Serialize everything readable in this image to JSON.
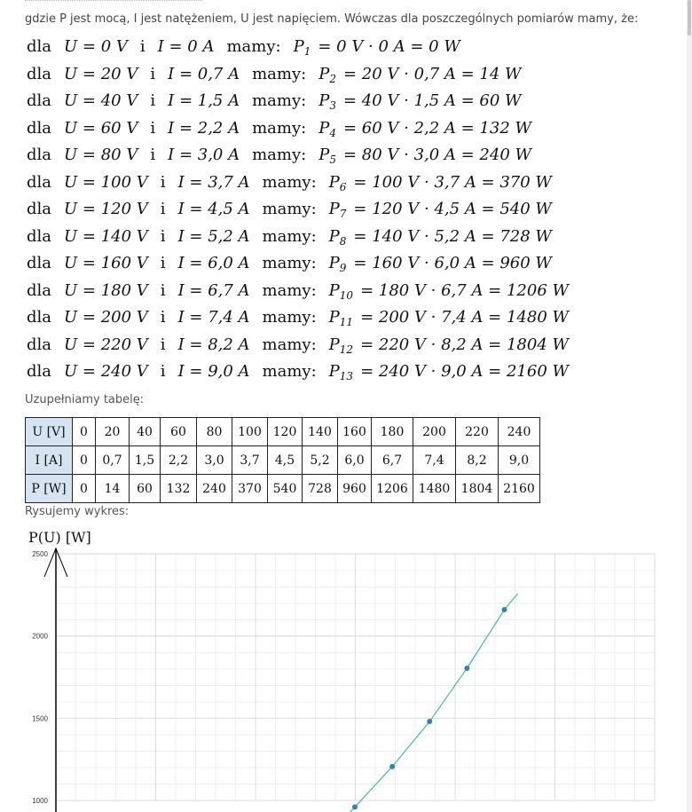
{
  "intro_text": "gdzie P jest mocą, I jest natężeniem, U jest napięciem. Wówczas dla poszczególnych pomiarów mamy, że:",
  "equations": [
    {
      "dla": "dla",
      "U": "U = 0 V",
      "i": "i",
      "I": "I = 0 A",
      "mamy": "mamy:",
      "P": "P",
      "n": "1",
      "rhs": "= 0 V · 0 A = 0 W"
    },
    {
      "dla": "dla",
      "U": "U = 20 V",
      "i": "i",
      "I": "I = 0,7 A",
      "mamy": "mamy:",
      "P": "P",
      "n": "2",
      "rhs": "= 20 V · 0,7 A = 14 W"
    },
    {
      "dla": "dla",
      "U": "U = 40 V",
      "i": "i",
      "I": "I = 1,5 A",
      "mamy": "mamy:",
      "P": "P",
      "n": "3",
      "rhs": "= 40 V · 1,5 A = 60 W"
    },
    {
      "dla": "dla",
      "U": "U = 60 V",
      "i": "i",
      "I": "I = 2,2 A",
      "mamy": "mamy:",
      "P": "P",
      "n": "4",
      "rhs": "= 60 V · 2,2 A = 132 W"
    },
    {
      "dla": "dla",
      "U": "U = 80 V",
      "i": "i",
      "I": "I = 3,0 A",
      "mamy": "mamy:",
      "P": "P",
      "n": "5",
      "rhs": "= 80 V · 3,0 A = 240 W"
    },
    {
      "dla": "dla",
      "U": "U = 100 V",
      "i": "i",
      "I": "I = 3,7 A",
      "mamy": "mamy:",
      "P": "P",
      "n": "6",
      "rhs": "= 100 V · 3,7 A = 370 W"
    },
    {
      "dla": "dla",
      "U": "U = 120 V",
      "i": "i",
      "I": "I = 4,5 A",
      "mamy": "mamy:",
      "P": "P",
      "n": "7",
      "rhs": "= 120 V · 4,5 A = 540 W"
    },
    {
      "dla": "dla",
      "U": "U = 140 V",
      "i": "i",
      "I": "I = 5,2 A",
      "mamy": "mamy:",
      "P": "P",
      "n": "8",
      "rhs": "= 140 V · 5,2 A = 728 W"
    },
    {
      "dla": "dla",
      "U": "U = 160 V",
      "i": "i",
      "I": "I = 6,0 A",
      "mamy": "mamy:",
      "P": "P",
      "n": "9",
      "rhs": "= 160 V · 6,0 A = 960 W"
    },
    {
      "dla": "dla",
      "U": "U = 180 V",
      "i": "i",
      "I": "I = 6,7 A",
      "mamy": "mamy:",
      "P": "P",
      "n": "10",
      "rhs": "= 180 V · 6,7 A = 1206 W"
    },
    {
      "dla": "dla",
      "U": "U = 200 V",
      "i": "i",
      "I": "I = 7,4 A",
      "mamy": "mamy:",
      "P": "P",
      "n": "11",
      "rhs": "= 200 V · 7,4 A = 1480 W"
    },
    {
      "dla": "dla",
      "U": "U = 220 V",
      "i": "i",
      "I": "I = 8,2 A",
      "mamy": "mamy:",
      "P": "P",
      "n": "12",
      "rhs": "= 220 V · 8,2 A = 1804 W"
    },
    {
      "dla": "dla",
      "U": "U = 240 V",
      "i": "i",
      "I": "I = 9,0 A",
      "mamy": "mamy:",
      "P": "P",
      "n": "13",
      "rhs": "= 240 V · 9,0 A = 2160 W"
    }
  ],
  "table_label": "Uzupełniamy tabelę:",
  "table": {
    "rows": [
      {
        "header": "U [V]",
        "cells": [
          "0",
          "20",
          "40",
          "60",
          "80",
          "100",
          "120",
          "140",
          "160",
          "180",
          "200",
          "220",
          "240"
        ]
      },
      {
        "header": "I [A]",
        "cells": [
          "0",
          "0,7",
          "1,5",
          "2,2",
          "3,0",
          "3,7",
          "4,5",
          "5,2",
          "6,0",
          "6,7",
          "7,4",
          "8,2",
          "9,0"
        ]
      },
      {
        "header": "P [W]",
        "cells": [
          "0",
          "14",
          "60",
          "132",
          "240",
          "370",
          "540",
          "728",
          "960",
          "1206",
          "1480",
          "1804",
          "2160"
        ]
      }
    ]
  },
  "chart_label": "Rysujemy wykres:",
  "chart_data": {
    "type": "line",
    "title": "P(U) [W]",
    "x": [
      160,
      180,
      200,
      220,
      240
    ],
    "y": [
      960,
      1206,
      1480,
      1804,
      2160
    ],
    "xlim": [
      0,
      300
    ],
    "ylim": [
      1000,
      2500
    ],
    "yticks": [
      "2500",
      "2000",
      "1500",
      "1000"
    ],
    "grid": true,
    "colors": {
      "line": "#4fb5a3",
      "point": "#3a7fa6",
      "axis": "#000000",
      "grid": "#e6e6e6"
    }
  }
}
